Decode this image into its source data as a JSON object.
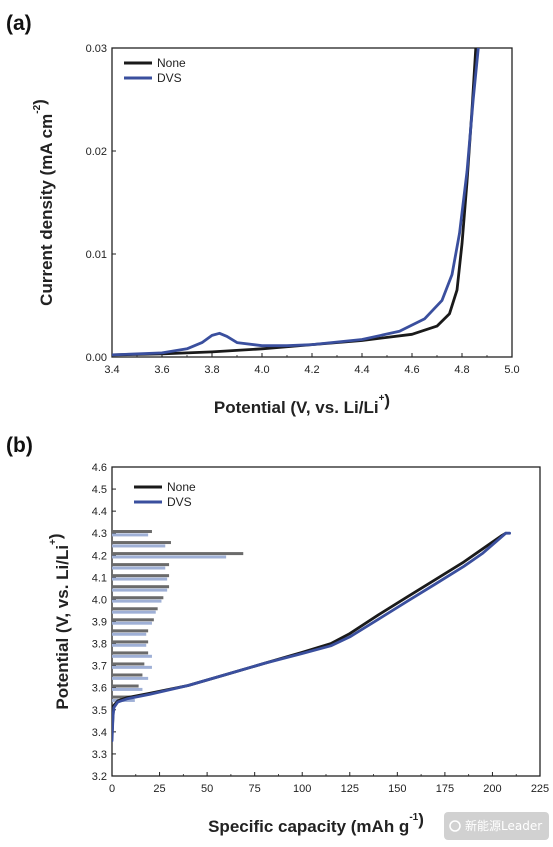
{
  "watermark": "新能源Leader",
  "colors": {
    "none": "#1a1a1a",
    "dvs": "#3a4f9e",
    "none_bar": "#6b6b6b",
    "dvs_bar": "#9fb0d6"
  },
  "chart_data": [
    {
      "id": "a",
      "panel_label": "(a)",
      "type": "line",
      "xlabel": "Potential (V, vs. Li/Li",
      "xlabel_sup": "+",
      "xlabel_end": ")",
      "ylabel": "Current density (mA cm",
      "ylabel_sup": "-2",
      "ylabel_end": ")",
      "xlim": [
        3.4,
        5.0
      ],
      "ylim": [
        0,
        0.03
      ],
      "xticks": [
        "3.4",
        "3.6",
        "3.8",
        "4.0",
        "4.2",
        "4.4",
        "4.6",
        "4.8",
        "5.0"
      ],
      "yticks": [
        "0.00",
        "0.01",
        "0.02",
        "0.03"
      ],
      "legend_position": "top-left",
      "series": [
        {
          "name": "None",
          "color": "#1a1a1a",
          "points": [
            [
              3.4,
              0.0002
            ],
            [
              3.6,
              0.0003
            ],
            [
              3.8,
              0.0005
            ],
            [
              4.0,
              0.0008
            ],
            [
              4.2,
              0.0012
            ],
            [
              4.4,
              0.0016
            ],
            [
              4.6,
              0.0022
            ],
            [
              4.7,
              0.003
            ],
            [
              4.75,
              0.0042
            ],
            [
              4.78,
              0.0065
            ],
            [
              4.8,
              0.011
            ],
            [
              4.82,
              0.017
            ],
            [
              4.84,
              0.024
            ],
            [
              4.855,
              0.03
            ]
          ]
        },
        {
          "name": "DVS",
          "color": "#3a4f9e",
          "points": [
            [
              3.4,
              0.0002
            ],
            [
              3.6,
              0.0004
            ],
            [
              3.7,
              0.0008
            ],
            [
              3.76,
              0.0014
            ],
            [
              3.8,
              0.0021
            ],
            [
              3.83,
              0.0023
            ],
            [
              3.86,
              0.002
            ],
            [
              3.9,
              0.0014
            ],
            [
              4.0,
              0.0011
            ],
            [
              4.1,
              0.0011
            ],
            [
              4.2,
              0.0012
            ],
            [
              4.4,
              0.0017
            ],
            [
              4.55,
              0.0025
            ],
            [
              4.65,
              0.0037
            ],
            [
              4.72,
              0.0055
            ],
            [
              4.76,
              0.008
            ],
            [
              4.79,
              0.012
            ],
            [
              4.82,
              0.018
            ],
            [
              4.845,
              0.025
            ],
            [
              4.865,
              0.03
            ]
          ]
        }
      ]
    },
    {
      "id": "b",
      "panel_label": "(b)",
      "type": "line",
      "xlabel": "Specific capacity (mAh g",
      "xlabel_sup": "-1",
      "xlabel_end": ")",
      "ylabel": "Potential (V, vs. Li/Li",
      "ylabel_sup": "+",
      "ylabel_end": ")",
      "xlim": [
        0,
        225
      ],
      "ylim": [
        3.2,
        4.6
      ],
      "xticks": [
        "0",
        "25",
        "50",
        "75",
        "100",
        "125",
        "150",
        "175",
        "200",
        "225"
      ],
      "yticks": [
        "3.2",
        "3.3",
        "3.4",
        "3.5",
        "3.6",
        "3.7",
        "3.8",
        "3.9",
        "4.0",
        "4.1",
        "4.2",
        "4.3",
        "4.4",
        "4.5",
        "4.6"
      ],
      "legend_position": "top-left",
      "series": [
        {
          "name": "None",
          "color": "#1a1a1a",
          "points": [
            [
              0,
              3.38
            ],
            [
              0.5,
              3.48
            ],
            [
              1,
              3.52
            ],
            [
              3,
              3.54
            ],
            [
              8,
              3.555
            ],
            [
              20,
              3.575
            ],
            [
              40,
              3.61
            ],
            [
              60,
              3.66
            ],
            [
              80,
              3.71
            ],
            [
              100,
              3.76
            ],
            [
              115,
              3.8
            ],
            [
              125,
              3.845
            ],
            [
              140,
              3.93
            ],
            [
              155,
              4.01
            ],
            [
              170,
              4.09
            ],
            [
              185,
              4.17
            ],
            [
              195,
              4.23
            ],
            [
              205,
              4.29
            ],
            [
              207,
              4.3
            ]
          ]
        },
        {
          "name": "DVS",
          "color": "#3a4f9e",
          "points": [
            [
              0,
              3.36
            ],
            [
              0.5,
              3.47
            ],
            [
              1,
              3.51
            ],
            [
              3,
              3.535
            ],
            [
              8,
              3.55
            ],
            [
              20,
              3.57
            ],
            [
              40,
              3.61
            ],
            [
              60,
              3.66
            ],
            [
              80,
              3.71
            ],
            [
              100,
              3.755
            ],
            [
              115,
              3.79
            ],
            [
              125,
              3.83
            ],
            [
              140,
              3.91
            ],
            [
              155,
              3.99
            ],
            [
              170,
              4.07
            ],
            [
              185,
              4.15
            ],
            [
              195,
              4.21
            ],
            [
              203,
              4.27
            ],
            [
              207,
              4.3
            ],
            [
              209,
              4.3
            ]
          ]
        }
      ],
      "bars": {
        "potentials": [
          4.3,
          4.25,
          4.2,
          4.15,
          4.1,
          4.05,
          4.0,
          3.95,
          3.9,
          3.85,
          3.8,
          3.75,
          3.7,
          3.65,
          3.6,
          3.55
        ],
        "none": [
          21,
          31,
          69,
          30,
          30,
          30,
          27,
          24,
          22,
          19,
          19,
          19,
          17,
          16,
          14,
          10
        ],
        "dvs": [
          19,
          28,
          60,
          28,
          29,
          29,
          26,
          23,
          21,
          18,
          18,
          21,
          21,
          19,
          16,
          12
        ]
      }
    }
  ]
}
